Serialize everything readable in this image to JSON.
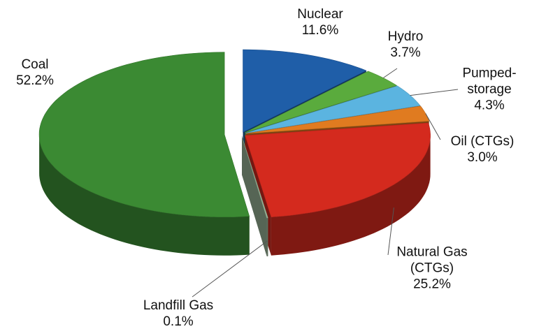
{
  "chart_data": {
    "type": "pie",
    "categories": [
      "Nuclear",
      "Hydro",
      "Pumped-storage",
      "Oil (CTGs)",
      "Natural Gas (CTGs)",
      "Landfill Gas",
      "Coal"
    ],
    "values": [
      11.6,
      3.7,
      4.3,
      3.0,
      25.2,
      0.1,
      52.2
    ],
    "value_labels": [
      "11.6%",
      "3.7%",
      "4.3%",
      "3.0%",
      "25.2%",
      "0.1%",
      "52.2%"
    ],
    "colors": [
      "#1f5ea8",
      "#5aab3d",
      "#5bb4e0",
      "#e07b20",
      "#d42a1e",
      "#9cb89a",
      "#3b8a33"
    ]
  }
}
